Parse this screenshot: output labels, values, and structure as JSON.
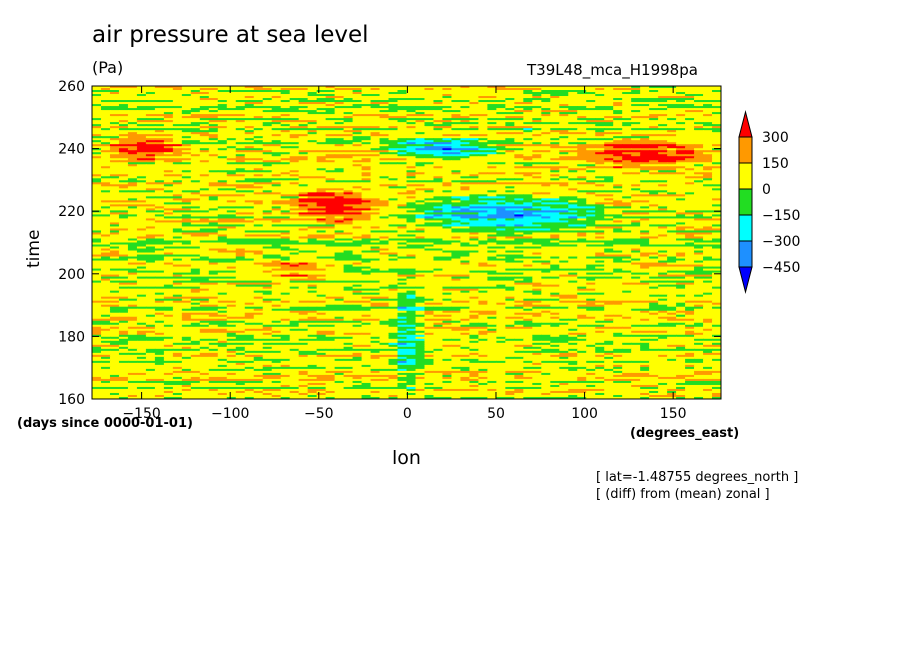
{
  "title": "air pressure at sea level",
  "units": "(Pa)",
  "model_name": "T39L48_mca_H1998pa",
  "x_units": "(degrees_east)",
  "time_units": "(days since 0000-01-01)",
  "x_axis_label": "lon",
  "y_axis_label": "time",
  "note_lines": [
    "[ lat=-1.48755 degrees_north ]",
    "[ (diff) from (mean) zonal ]"
  ],
  "chart_data": {
    "type": "heatmap",
    "title": "air pressure at sea level",
    "xlabel": "lon",
    "ylabel": "time",
    "xlim": [
      -178,
      177
    ],
    "ylim": [
      160,
      260
    ],
    "x_ticks": [
      -150,
      -100,
      -50,
      0,
      50,
      100,
      150
    ],
    "y_ticks": [
      160,
      180,
      200,
      220,
      240,
      260
    ],
    "colorbar": {
      "levels": [
        300,
        150,
        0,
        -150,
        -300,
        -450
      ],
      "colors": [
        "#ff0000",
        "#ff9900",
        "#ffff00",
        "#22dd22",
        "#00ffff",
        "#1e90ff",
        "#0000ff"
      ],
      "extend": "both"
    },
    "features": [
      {
        "lon_range": [
          -70,
          -10
        ],
        "time_range": [
          215,
          228
        ],
        "value": 300
      },
      {
        "lon_range": [
          -175,
          -120
        ],
        "time_range": [
          236,
          245
        ],
        "value": 300
      },
      {
        "lon_range": [
          90,
          177
        ],
        "time_range": [
          233,
          244
        ],
        "value": 300
      },
      {
        "lon_range": [
          -90,
          -40
        ],
        "time_range": [
          197,
          205
        ],
        "value": 200
      },
      {
        "lon_range": [
          -10,
          120
        ],
        "time_range": [
          212,
          226
        ],
        "value": -350
      },
      {
        "lon_range": [
          -20,
          60
        ],
        "time_range": [
          236,
          244
        ],
        "value": -350
      },
      {
        "lon_range": [
          -10,
          10
        ],
        "time_range": [
          160,
          200
        ],
        "value": -250
      }
    ]
  }
}
